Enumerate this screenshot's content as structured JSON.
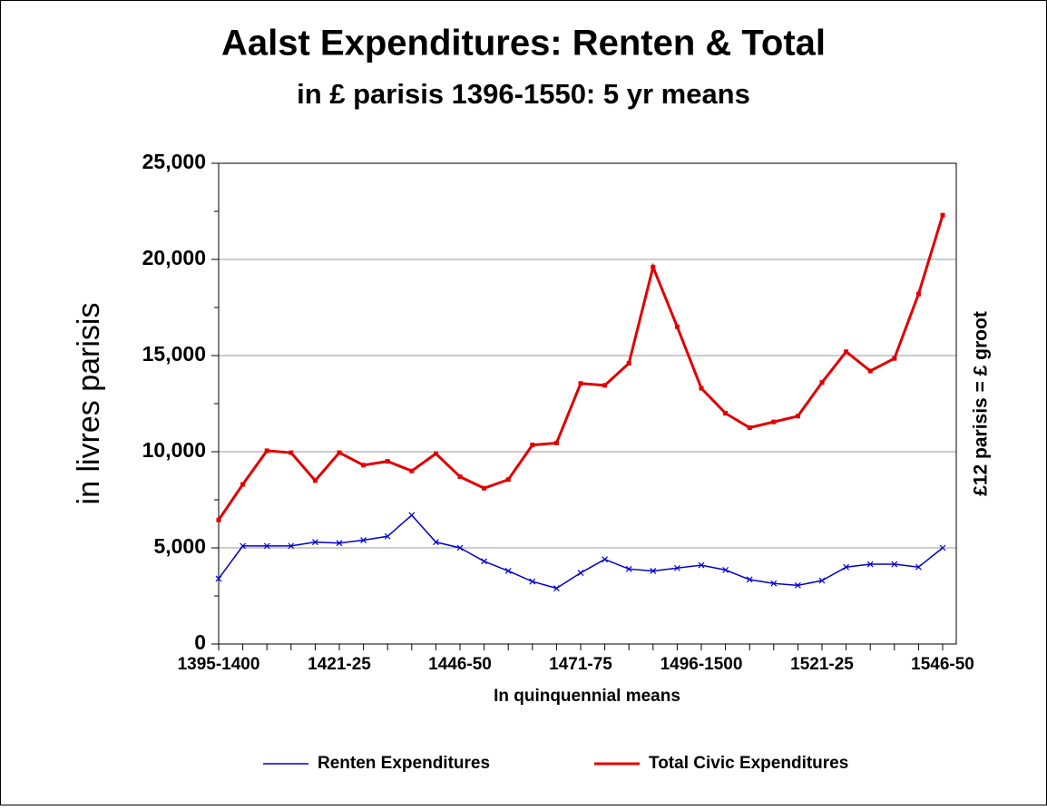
{
  "chart_data": {
    "type": "line",
    "title": "Aalst Expenditures: Renten & Total",
    "subtitle": "in £ parisis 1396-1550: 5 yr means",
    "y_label": "in livres parisis",
    "x_label": "In quinquennial means",
    "y2_label": "£12 parisis = £ groot",
    "categories": [
      "1395-1400",
      null,
      null,
      null,
      null,
      "1421-25",
      null,
      null,
      null,
      null,
      "1446-50",
      null,
      null,
      null,
      null,
      "1471-75",
      null,
      null,
      null,
      null,
      "1496-1500",
      null,
      null,
      null,
      null,
      "1521-25",
      null,
      null,
      null,
      null,
      "1546-50"
    ],
    "series": [
      {
        "name": "Renten Expenditures",
        "color": "#0000cc",
        "marker": "x",
        "values": [
          3400,
          5100,
          5100,
          5100,
          5300,
          5250,
          5400,
          5600,
          6700,
          5300,
          5000,
          4300,
          3800,
          3250,
          2900,
          3700,
          4400,
          3900,
          3800,
          3950,
          4100,
          3850,
          3350,
          3150,
          3050,
          3300,
          4000,
          4150,
          4150,
          4000,
          5000
        ]
      },
      {
        "name": "Total Civic Expenditures",
        "color": "#e00000",
        "marker": "square",
        "values": [
          6450,
          8300,
          10050,
          9950,
          8500,
          9950,
          9300,
          9500,
          9000,
          9900,
          8700,
          8100,
          8550,
          10350,
          10450,
          13550,
          13450,
          14600,
          19600,
          16500,
          13300,
          12000,
          11250,
          11550,
          11850,
          13600,
          15200,
          14200,
          14850,
          18200,
          22300
        ]
      }
    ],
    "ylim": [
      0,
      25000
    ],
    "yticks": [
      0,
      {
        "value": 5000,
        "label": "5,000"
      },
      {
        "value": 10000,
        "label": "10,000"
      },
      {
        "value": 15000,
        "label": "15,000"
      },
      {
        "value": 20000,
        "label": "20,000"
      },
      {
        "value": 25000,
        "label": "25,000"
      }
    ],
    "grid": true,
    "legend": "bottom"
  }
}
